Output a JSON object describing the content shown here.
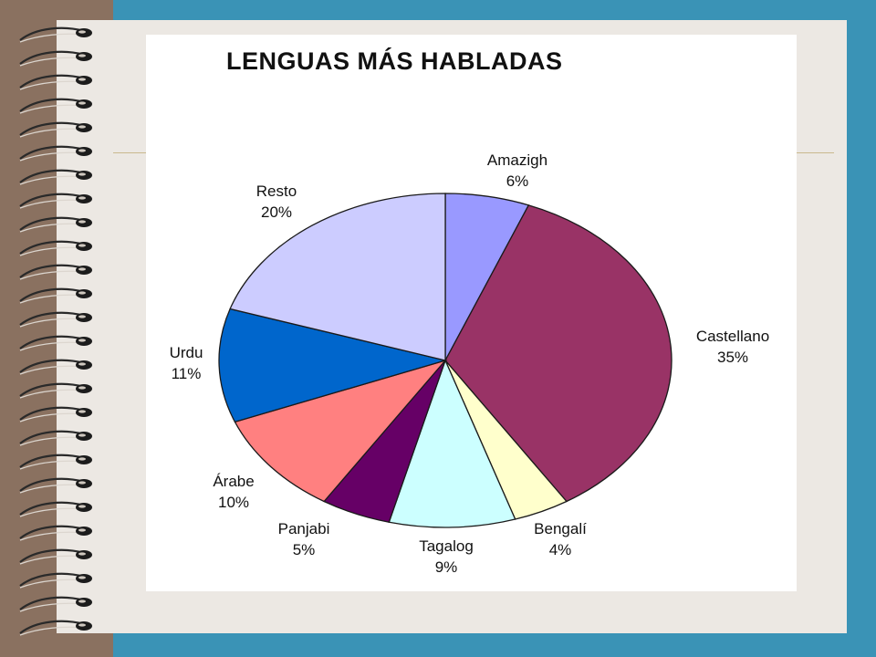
{
  "slide": {
    "colors": {
      "frame": "#3a93b6",
      "binding": "#8a7160",
      "page": "#ece8e3",
      "accent_line": "#c9b98f",
      "card": "#ffffff"
    }
  },
  "chart_data": {
    "type": "pie",
    "title": "LENGUAS MÁS HABLADAS",
    "start_angle_deg": 0,
    "direction": "clockwise",
    "legend": "none",
    "slices": [
      {
        "label": "Amazigh",
        "value": 6,
        "value_label": "6%",
        "color": "#9999ff"
      },
      {
        "label": "Castellano",
        "value": 35,
        "value_label": "35%",
        "color": "#993366"
      },
      {
        "label": "Bengalí",
        "value": 4,
        "value_label": "4%",
        "color": "#ffffcc"
      },
      {
        "label": "Tagalog",
        "value": 9,
        "value_label": "9%",
        "color": "#ccffff"
      },
      {
        "label": "Panjabi",
        "value": 5,
        "value_label": "5%",
        "color": "#660066"
      },
      {
        "label": "Árabe",
        "value": 10,
        "value_label": "10%",
        "color": "#ff8080"
      },
      {
        "label": "Urdu",
        "value": 11,
        "value_label": "11%",
        "color": "#0066cc"
      },
      {
        "label": "Resto",
        "value": 20,
        "value_label": "20%",
        "color": "#ccccff"
      }
    ]
  }
}
